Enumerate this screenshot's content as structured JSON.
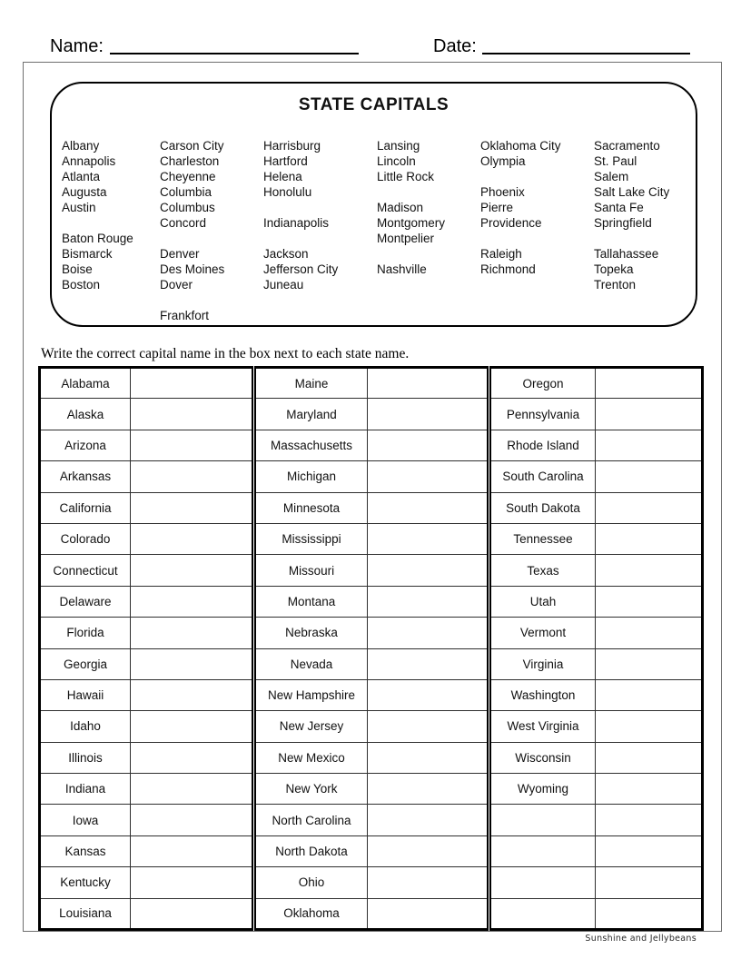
{
  "header": {
    "name_label": "Name:",
    "date_label": "Date:"
  },
  "capitals_bank": {
    "title": "STATE CAPITALS",
    "columns": [
      [
        "Albany",
        "Annapolis",
        "Atlanta",
        "Augusta",
        "Austin",
        "",
        "Baton Rouge",
        "Bismarck",
        "Boise",
        "Boston",
        "",
        ""
      ],
      [
        "Carson City",
        "Charleston",
        "Cheyenne",
        "Columbia",
        "Columbus",
        "Concord",
        "",
        "Denver",
        "Des Moines",
        "Dover",
        "",
        "Frankfort"
      ],
      [
        "Harrisburg",
        "Hartford",
        "Helena",
        "Honolulu",
        "",
        "Indianapolis",
        "",
        "Jackson",
        "Jefferson City",
        "Juneau",
        "",
        ""
      ],
      [
        "Lansing",
        "Lincoln",
        "Little Rock",
        "",
        "Madison",
        "Montgomery",
        "Montpelier",
        "",
        "Nashville",
        "",
        "",
        ""
      ],
      [
        "Oklahoma City",
        "Olympia",
        "",
        "Phoenix",
        "Pierre",
        "Providence",
        "",
        "Raleigh",
        "Richmond",
        "",
        "",
        ""
      ],
      [
        "Sacramento",
        "St. Paul",
        "Salem",
        "Salt Lake City",
        "Santa Fe",
        "Springfield",
        "",
        "Tallahassee",
        "Topeka",
        "Trenton",
        "",
        ""
      ]
    ]
  },
  "instruction": "Write the correct capital name in the box next to each state name.",
  "worksheet_table": {
    "groups": [
      {
        "states": [
          "Alabama",
          "Alaska",
          "Arizona",
          "Arkansas",
          "California",
          "Colorado",
          "Connecticut",
          "Delaware",
          "Florida",
          "Georgia",
          "Hawaii",
          "Idaho",
          "Illinois",
          "Indiana",
          "Iowa",
          "Kansas",
          "Kentucky",
          "Louisiana"
        ]
      },
      {
        "states": [
          "Maine",
          "Maryland",
          "Massachusetts",
          "Michigan",
          "Minnesota",
          "Mississippi",
          "Missouri",
          "Montana",
          "Nebraska",
          "Nevada",
          "New Hampshire",
          "New Jersey",
          "New Mexico",
          "New York",
          "North Carolina",
          "North Dakota",
          "Ohio",
          "Oklahoma"
        ]
      },
      {
        "states": [
          "Oregon",
          "Pennsylvania",
          "Rhode Island",
          "South Carolina",
          "South Dakota",
          "Tennessee",
          "Texas",
          "Utah",
          "Vermont",
          "Virginia",
          "Washington",
          "West Virginia",
          "Wisconsin",
          "Wyoming",
          "",
          "",
          "",
          ""
        ]
      }
    ],
    "answer_placeholder": ""
  },
  "footer": {
    "credit": "Sunshine and Jellybeans"
  },
  "colors": {
    "ink": "#000000",
    "page_border": "#6f6f6f"
  }
}
